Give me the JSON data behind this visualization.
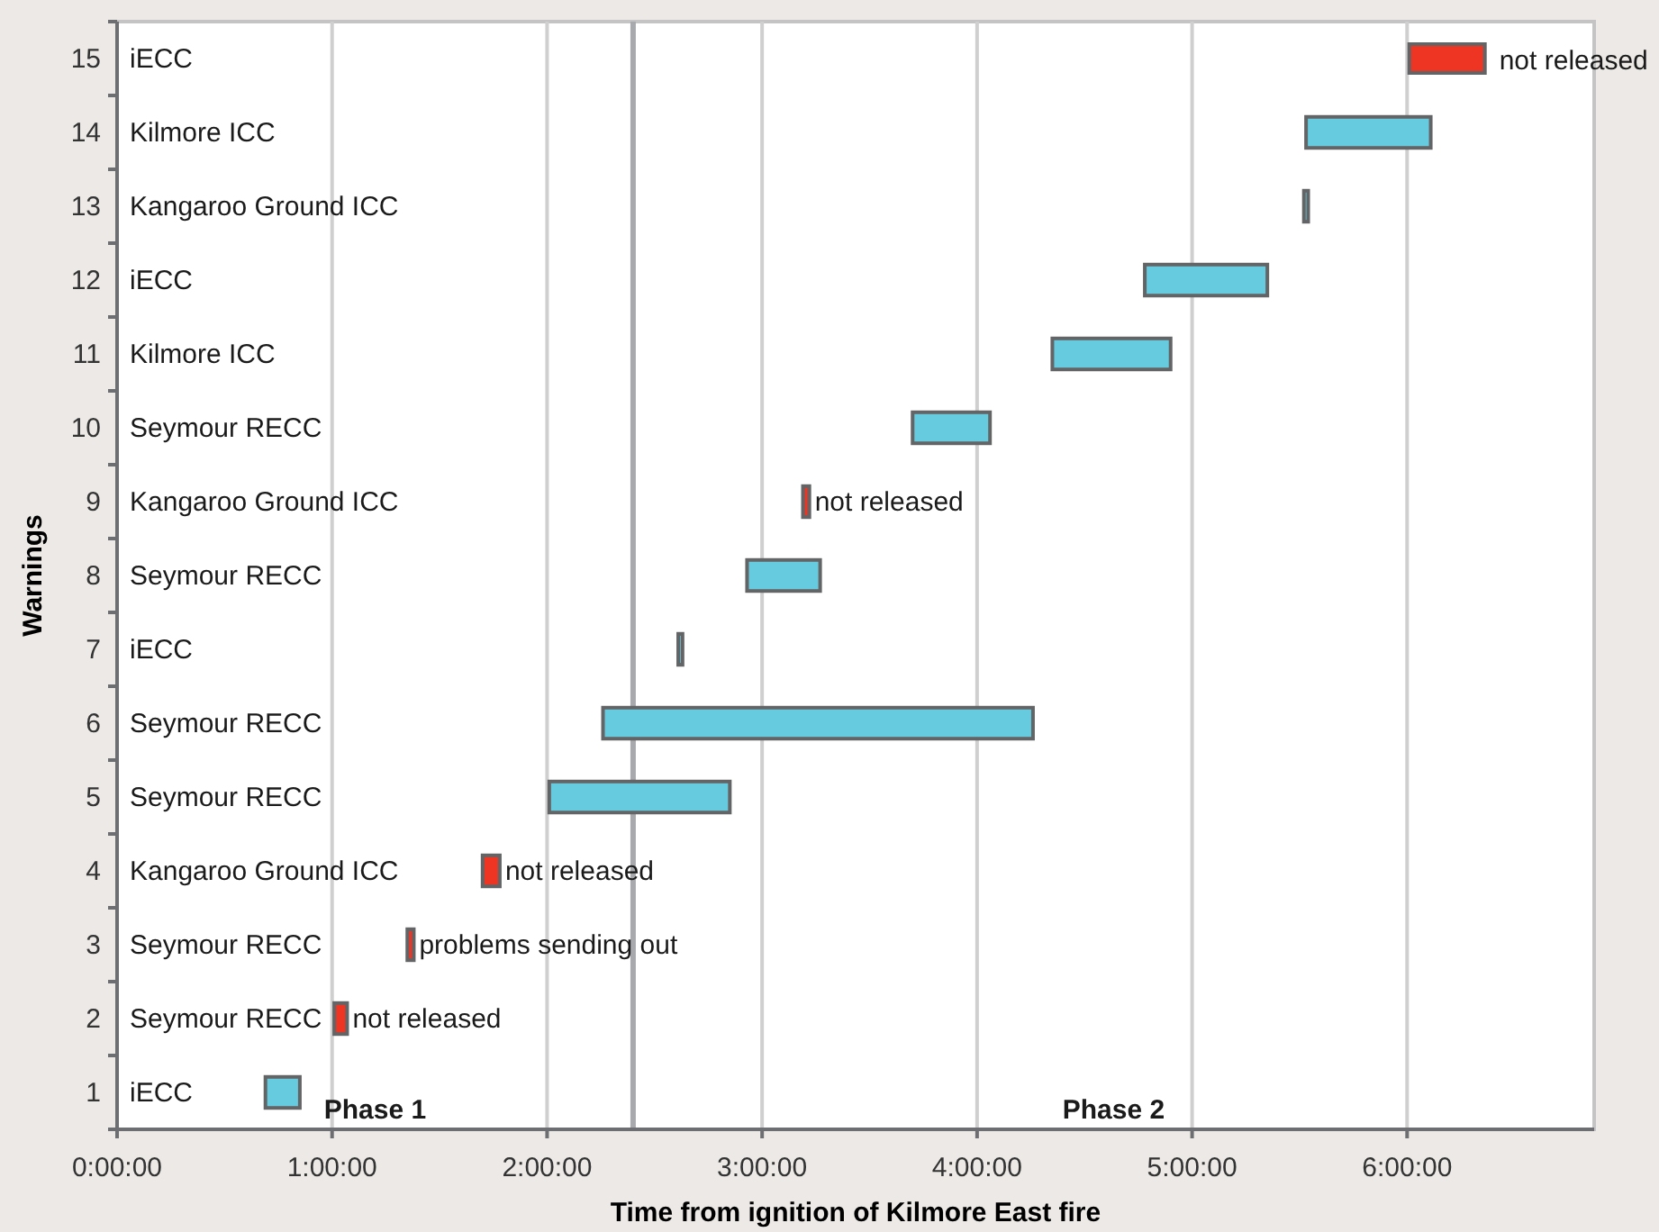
{
  "chart_data": {
    "type": "bar",
    "orientation": "horizontal",
    "xlabel": "Time from ignition of Kilmore East fire",
    "ylabel": "Warnings",
    "categories": [
      "15",
      "14",
      "13",
      "12",
      "11",
      "10",
      "9",
      "8",
      "7",
      "6",
      "5",
      "4",
      "3",
      "2",
      "1"
    ],
    "series": [
      {
        "color": "#67cbdf",
        "base": [
          null,
          5.53,
          5.52,
          4.78,
          4.35,
          3.7,
          null,
          2.93,
          2.61,
          2.26,
          2.01,
          null,
          null,
          null,
          0.69
        ],
        "values": [
          null,
          0.58,
          0.02,
          0.57,
          0.55,
          0.36,
          null,
          0.34,
          0.02,
          2.0,
          0.84,
          null,
          null,
          null,
          0.16
        ]
      },
      {
        "name": "not released",
        "color": "#ee3524",
        "base": [
          null,
          null,
          null,
          null,
          null,
          null,
          3.19,
          null,
          null,
          null,
          null,
          1.7,
          1.35,
          1.01,
          null
        ],
        "values": [
          null,
          null,
          null,
          null,
          null,
          null,
          0.03,
          null,
          null,
          null,
          null,
          0.08,
          0.03,
          0.06,
          null
        ]
      }
    ],
    "xlim": [
      0,
      6.87
    ],
    "xticks": [
      {
        "value": 0,
        "label": "0:00:00"
      },
      {
        "value": 1,
        "label": "1:00:00"
      },
      {
        "value": 2,
        "label": "2:00:00"
      },
      {
        "value": 3,
        "label": "3:00:00"
      },
      {
        "value": 4,
        "label": "4:00:00"
      },
      {
        "value": 5,
        "label": "5:00:00"
      },
      {
        "value": 6,
        "label": "6:00:00"
      }
    ],
    "grid": "x",
    "legend": "top right",
    "ref_lines": [
      {
        "axis": "x",
        "value": 2.4,
        "color": "#a7a9ac"
      }
    ],
    "annotations": [
      "iECC",
      "Kilmore ICC",
      "Kangaroo Ground ICC",
      "iECC",
      "Kilmore ICC",
      "Seymour RECC",
      "Kangaroo Ground ICC",
      "Seymour RECC",
      "iECC",
      "Seymour RECC",
      "Seymour RECC",
      "Kangaroo Ground ICC",
      "Seymour RECC",
      "Seymour RECC",
      "iECC",
      {
        "text": "not released",
        "x": 3.22,
        "y": "9"
      },
      {
        "text": "not released",
        "x": 1.78,
        "y": "4"
      },
      {
        "text": "problems sending out",
        "x": 1.38,
        "y": "3"
      },
      {
        "text": "not released",
        "x": 1.07,
        "y": "2"
      },
      "Phase 1",
      "Phase 2"
    ]
  }
}
